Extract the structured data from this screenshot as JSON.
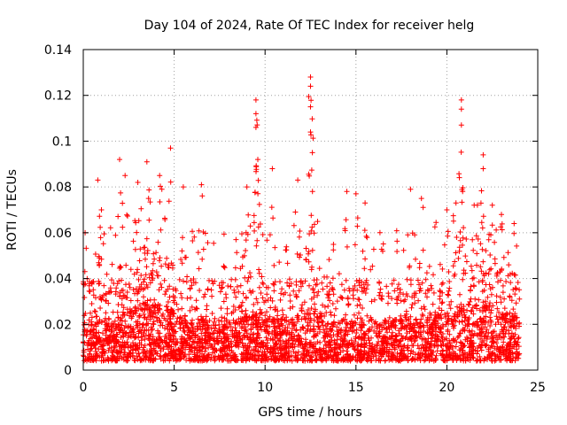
{
  "chart_data": {
    "type": "scatter",
    "title": "Day 104 of 2024, Rate Of TEC Index for receiver helg",
    "xlabel": "GPS time / hours",
    "ylabel": "ROTI / TECUs",
    "xlim": [
      0,
      25
    ],
    "ylim": [
      0,
      0.14
    ],
    "x_ticks": [
      0,
      5,
      10,
      15,
      20,
      25
    ],
    "x_tick_labels": [
      "0",
      "5",
      "10",
      "15",
      "20",
      "25"
    ],
    "y_ticks": [
      0,
      0.02,
      0.04,
      0.06,
      0.08,
      0.1,
      0.12,
      0.14
    ],
    "y_tick_labels": [
      "0",
      "0.02",
      "0.04",
      "0.06",
      "0.08",
      "0.1",
      "0.12",
      "0.14"
    ],
    "grid": true,
    "marker": "+",
    "color": "#ff0000",
    "series": [
      {
        "name": "ROTI",
        "x_range": [
          0,
          24
        ],
        "typical_range": [
          0.003,
          0.05
        ],
        "notable_points": [
          {
            "x": 0.1,
            "y": 0.06
          },
          {
            "x": 0.8,
            "y": 0.083
          },
          {
            "x": 1.0,
            "y": 0.07
          },
          {
            "x": 2.0,
            "y": 0.092
          },
          {
            "x": 2.3,
            "y": 0.085
          },
          {
            "x": 3.0,
            "y": 0.082
          },
          {
            "x": 3.5,
            "y": 0.091
          },
          {
            "x": 4.2,
            "y": 0.085
          },
          {
            "x": 4.8,
            "y": 0.097
          },
          {
            "x": 5.5,
            "y": 0.08
          },
          {
            "x": 6.5,
            "y": 0.081
          },
          {
            "x": 8.4,
            "y": 0.057
          },
          {
            "x": 9.0,
            "y": 0.08
          },
          {
            "x": 9.5,
            "y": 0.118
          },
          {
            "x": 9.5,
            "y": 0.112
          },
          {
            "x": 9.5,
            "y": 0.106
          },
          {
            "x": 9.6,
            "y": 0.092
          },
          {
            "x": 10.4,
            "y": 0.088
          },
          {
            "x": 11.8,
            "y": 0.083
          },
          {
            "x": 12.5,
            "y": 0.128
          },
          {
            "x": 12.5,
            "y": 0.124
          },
          {
            "x": 12.5,
            "y": 0.115
          },
          {
            "x": 12.5,
            "y": 0.104
          },
          {
            "x": 12.6,
            "y": 0.095
          },
          {
            "x": 14.5,
            "y": 0.078
          },
          {
            "x": 15.0,
            "y": 0.077
          },
          {
            "x": 15.5,
            "y": 0.073
          },
          {
            "x": 18.0,
            "y": 0.079
          },
          {
            "x": 18.6,
            "y": 0.075
          },
          {
            "x": 20.0,
            "y": 0.07
          },
          {
            "x": 20.5,
            "y": 0.073
          },
          {
            "x": 20.8,
            "y": 0.118
          },
          {
            "x": 20.8,
            "y": 0.114
          },
          {
            "x": 20.8,
            "y": 0.107
          },
          {
            "x": 21.5,
            "y": 0.072
          },
          {
            "x": 22.0,
            "y": 0.094
          },
          {
            "x": 22.0,
            "y": 0.088
          },
          {
            "x": 22.5,
            "y": 0.072
          },
          {
            "x": 23.0,
            "y": 0.068
          },
          {
            "x": 23.7,
            "y": 0.064
          }
        ]
      }
    ]
  }
}
